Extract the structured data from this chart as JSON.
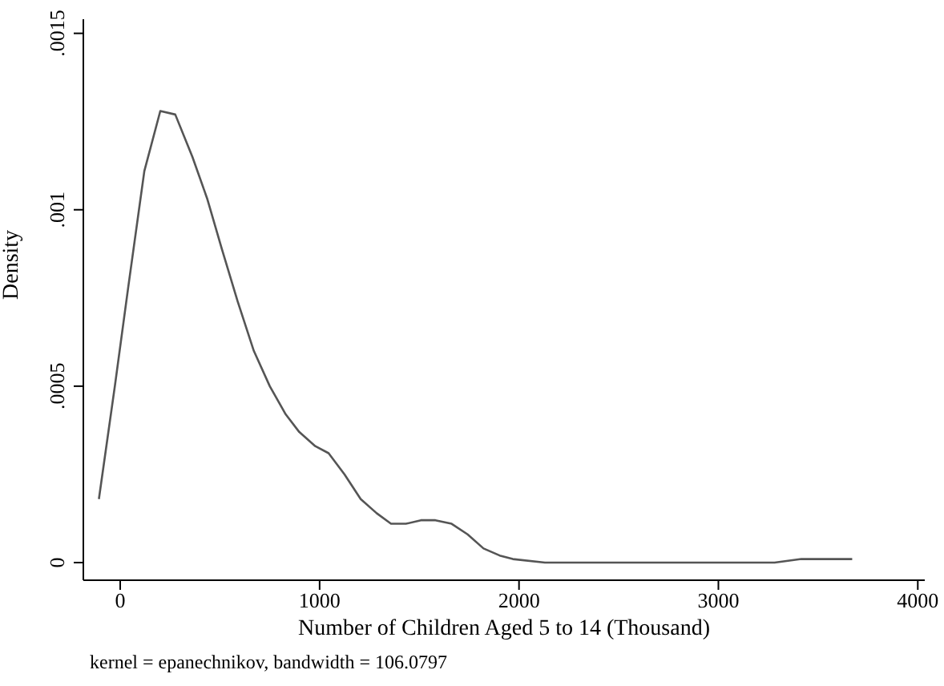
{
  "chart_data": {
    "type": "line",
    "xlabel": "Number of Children Aged 5 to 14 (Thousand)",
    "ylabel": "Density",
    "annotations": [
      "kernel = epanechnikov, bandwidth = 106.0797"
    ],
    "x": [
      -107,
      -27,
      40,
      121,
      201,
      276,
      362,
      437,
      509,
      589,
      670,
      750,
      830,
      898,
      978,
      1045,
      1125,
      1206,
      1286,
      1358,
      1433,
      1508,
      1581,
      1662,
      1742,
      1822,
      1903,
      1969,
      2130,
      2291,
      3282,
      3416,
      3523,
      3671
    ],
    "series": [
      {
        "color": "#555555",
        "values": [
          0.00018,
          0.0005,
          0.00078,
          0.00111,
          0.00128,
          0.00127,
          0.00115,
          0.00103,
          0.00089,
          0.00074,
          0.0006,
          0.0005,
          0.00042,
          0.00037,
          0.00033,
          0.00031,
          0.00025,
          0.00018,
          0.00014,
          0.00011,
          0.00011,
          0.00012,
          0.00012,
          0.00011,
          8e-05,
          4e-05,
          2e-05,
          1e-05,
          0,
          0,
          0,
          1e-05,
          1e-05,
          1e-05
        ]
      }
    ],
    "xlim": [
      -185,
      4035
    ],
    "ylim": [
      -5e-05,
      0.00154
    ],
    "xticks": [
      0,
      1000,
      2000,
      3000,
      4000
    ],
    "yticks": [
      {
        "value": 0,
        "label": "0"
      },
      {
        "value": 0.0005,
        "label": ".0005"
      },
      {
        "value": 0.001,
        "label": ".001"
      },
      {
        "value": 0.0015,
        "label": ".0015"
      }
    ],
    "grid": false,
    "legend": false,
    "marker": "none",
    "line_style": "solid"
  }
}
